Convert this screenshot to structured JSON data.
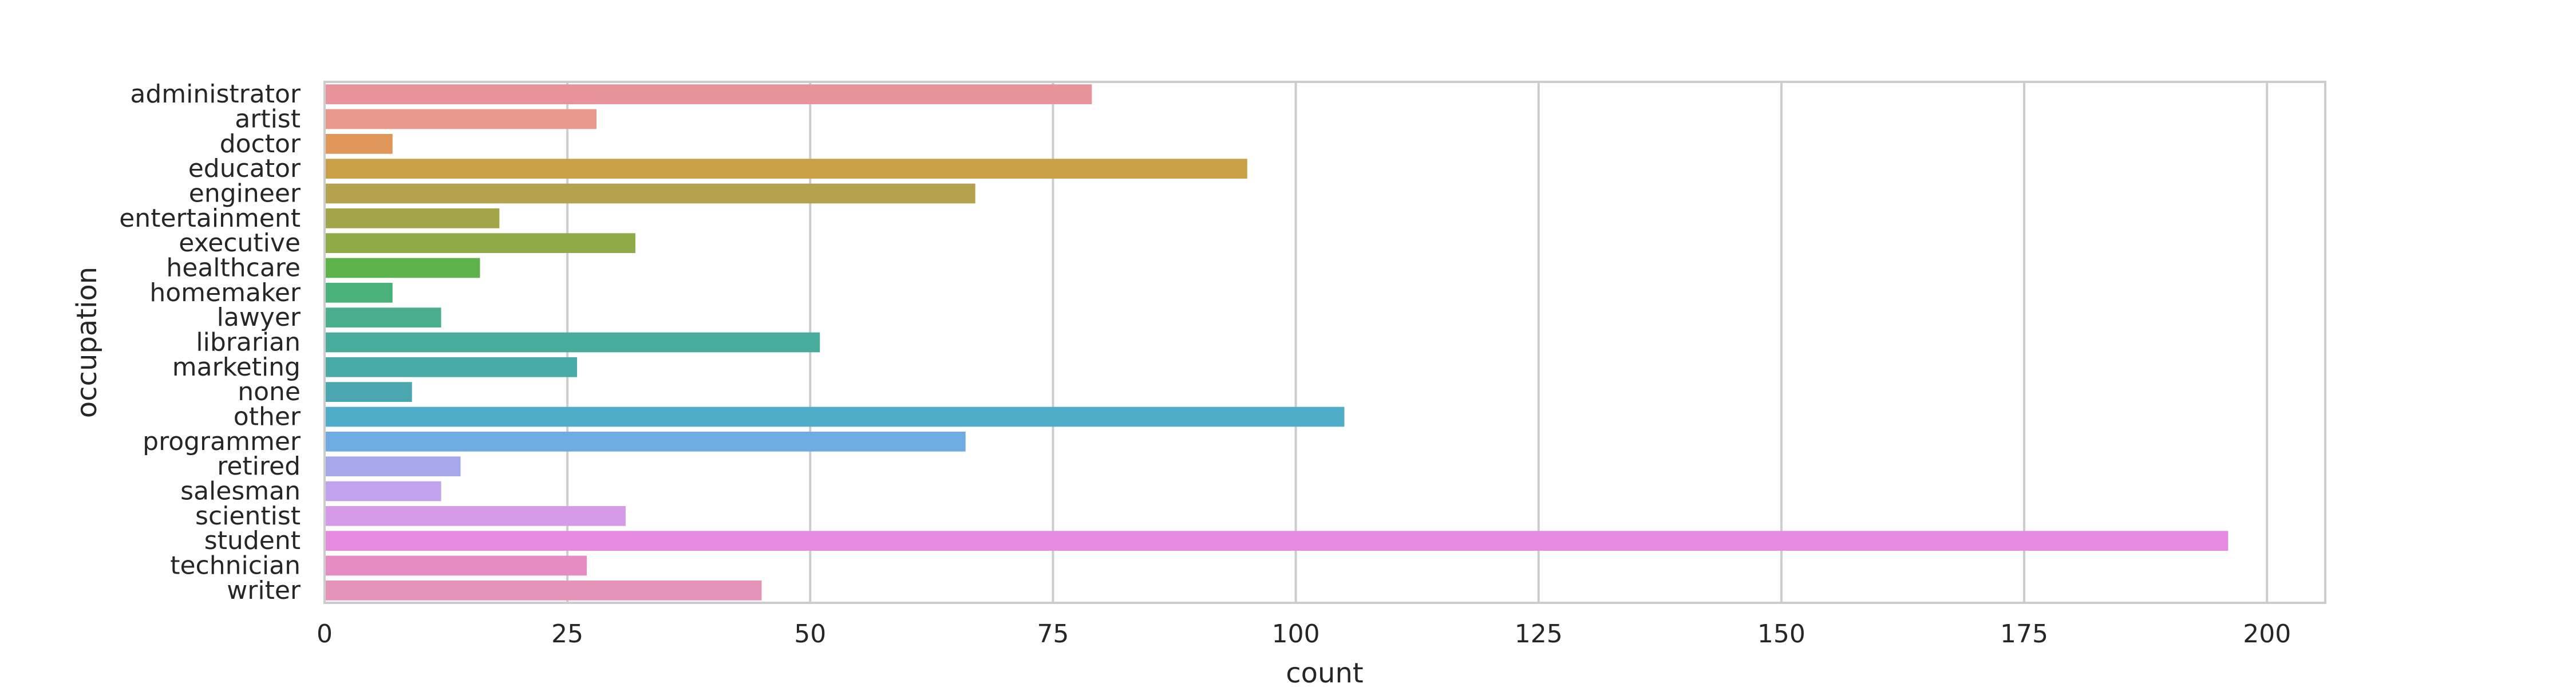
{
  "chart_data": {
    "type": "bar",
    "orientation": "horizontal",
    "xlabel": "count",
    "ylabel": "occupation",
    "xlim": [
      0,
      206
    ],
    "xticks": [
      0,
      25,
      50,
      75,
      100,
      125,
      150,
      175,
      200
    ],
    "grid": "vertical",
    "categories": [
      "administrator",
      "artist",
      "doctor",
      "educator",
      "engineer",
      "entertainment",
      "executive",
      "healthcare",
      "homemaker",
      "lawyer",
      "librarian",
      "marketing",
      "none",
      "other",
      "programmer",
      "retired",
      "salesman",
      "scientist",
      "student",
      "technician",
      "writer"
    ],
    "values": [
      79,
      28,
      7,
      95,
      67,
      18,
      32,
      16,
      7,
      12,
      51,
      26,
      9,
      105,
      66,
      14,
      12,
      31,
      196,
      27,
      45
    ],
    "colors": [
      "#e8929c",
      "#e8988a",
      "#e09658",
      "#c9a045",
      "#b5a24e",
      "#a2a548",
      "#8eab48",
      "#5db34a",
      "#4bb17a",
      "#4aae8e",
      "#48ab9b",
      "#49a9a5",
      "#4aa7b0",
      "#4fadc9",
      "#6fabe3",
      "#a4a8ea",
      "#c1a2ec",
      "#d69ae9",
      "#e68ae0",
      "#e68cc4",
      "#e693b9"
    ]
  }
}
